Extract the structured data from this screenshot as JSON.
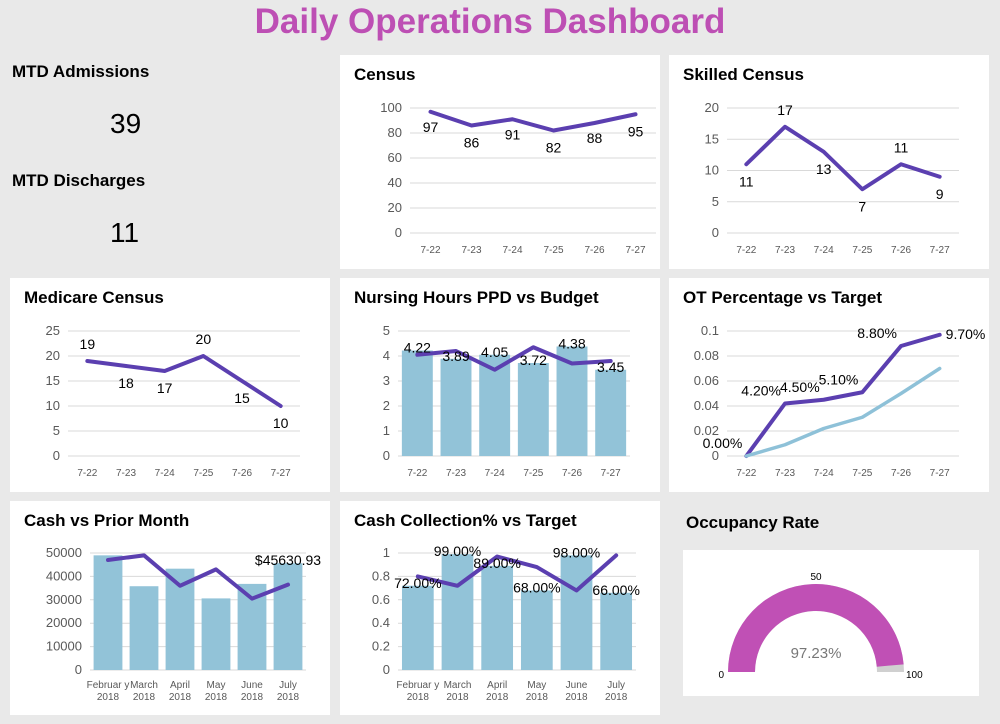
{
  "header": {
    "title": "Daily Operations Dashboard"
  },
  "kpis": {
    "admissions_label": "MTD Admissions",
    "admissions_value": "39",
    "discharges_label": "MTD Discharges",
    "discharges_value": "11"
  },
  "colors": {
    "line": "#5b3fb0",
    "bar": "#92c3d8",
    "target": "#8ec1d8",
    "gauge": "#c050b5",
    "gauge_bg": "#d0d0d0"
  },
  "gauge": {
    "title": "Occupancy Rate",
    "value_label": "97.23%",
    "value": 97.23,
    "min_label": "0",
    "mid_label": "50",
    "max_label": "100",
    "min": 0,
    "max": 100
  },
  "chart_data": [
    {
      "id": "census",
      "type": "line",
      "title": "Census",
      "categories": [
        "7-22",
        "7-23",
        "7-24",
        "7-25",
        "7-26",
        "7-27"
      ],
      "ylim": [
        0,
        100
      ],
      "yticks": [
        "0",
        "20",
        "40",
        "60",
        "80",
        "100"
      ],
      "series": [
        {
          "values": [
            97,
            86,
            91,
            82,
            88,
            95
          ],
          "labels": [
            "97",
            "86",
            "91",
            "82",
            "88",
            "95"
          ]
        }
      ]
    },
    {
      "id": "skilled",
      "type": "line",
      "title": "Skilled Census",
      "categories": [
        "7-22",
        "7-23",
        "7-24",
        "7-25",
        "7-26",
        "7-27"
      ],
      "ylim": [
        0,
        20
      ],
      "yticks": [
        "0",
        "5",
        "10",
        "15",
        "20"
      ],
      "series": [
        {
          "values": [
            11,
            17,
            13,
            7,
            11,
            9
          ],
          "labels": [
            "11",
            "17",
            "13",
            "7",
            "11",
            "9"
          ]
        }
      ]
    },
    {
      "id": "medicare",
      "type": "line",
      "title": "Medicare Census",
      "categories": [
        "7-22",
        "7-23",
        "7-24",
        "7-25",
        "7-26",
        "7-27"
      ],
      "ylim": [
        0,
        25
      ],
      "yticks": [
        "0",
        "5",
        "10",
        "15",
        "20",
        "25"
      ],
      "series": [
        {
          "values": [
            19,
            18,
            17,
            20,
            15,
            10
          ],
          "labels": [
            "19",
            "18",
            "17",
            "20",
            "15",
            "10"
          ]
        }
      ]
    },
    {
      "id": "nursing",
      "type": "bar+line",
      "title": "Nursing Hours PPD vs Budget",
      "categories": [
        "7-22",
        "7-23",
        "7-24",
        "7-25",
        "7-26",
        "7-27"
      ],
      "ylim": [
        0,
        5
      ],
      "yticks": [
        "0",
        "1",
        "2",
        "3",
        "4",
        "5"
      ],
      "bars": {
        "values": [
          4.22,
          3.89,
          4.05,
          3.72,
          4.38,
          3.45
        ],
        "labels": [
          "4.22",
          "3.89",
          "4.05",
          "3.72",
          "4.38",
          "3.45"
        ]
      },
      "series": [
        {
          "values": [
            4.05,
            4.2,
            3.45,
            4.35,
            3.7,
            3.8
          ]
        }
      ]
    },
    {
      "id": "ot",
      "type": "line",
      "title": "OT Percentage vs Target",
      "categories": [
        "7-22",
        "7-23",
        "7-24",
        "7-25",
        "7-26",
        "7-27"
      ],
      "ylim": [
        0,
        0.1
      ],
      "yticks": [
        "0",
        "0.02",
        "0.04",
        "0.06",
        "0.08",
        "0.1"
      ],
      "series": [
        {
          "values": [
            0,
            0.042,
            0.045,
            0.051,
            0.088,
            0.097
          ],
          "labels": [
            "0.00%",
            "4.20%",
            "4.50%",
            "5.10%",
            "8.80%",
            "9.70%"
          ]
        },
        {
          "values": [
            0,
            0.009,
            0.022,
            0.031,
            0.05,
            0.07
          ]
        }
      ]
    },
    {
      "id": "cash",
      "type": "bar+line",
      "title": "Cash vs Prior Month",
      "categories": [
        "Februar y 2018",
        "March 2018",
        "April 2018",
        "May 2018",
        "June 2018",
        "July 2018"
      ],
      "ylim": [
        0,
        50000
      ],
      "yticks": [
        "0",
        "10000",
        "20000",
        "30000",
        "40000",
        "50000"
      ],
      "bars": {
        "values": [
          49000,
          35800,
          43300,
          30600,
          36800,
          45630.93
        ],
        "labels": [
          "",
          "",
          "",
          "",
          "",
          "$45630.93"
        ]
      },
      "series": [
        {
          "values": [
            47000,
            49000,
            36000,
            43000,
            30500,
            36500
          ]
        }
      ]
    },
    {
      "id": "collection",
      "type": "bar+line",
      "title": "Cash Collection% vs Target",
      "categories": [
        "Februar y 2018",
        "March 2018",
        "April 2018",
        "May 2018",
        "June 2018",
        "July 2018"
      ],
      "ylim": [
        0,
        1
      ],
      "yticks": [
        "0",
        "0.2",
        "0.4",
        "0.6",
        "0.8",
        "1"
      ],
      "bars": {
        "values": [
          0.72,
          0.99,
          0.89,
          0.68,
          0.98,
          0.66
        ],
        "labels": [
          "72.00%",
          "99.00%",
          "89.00%",
          "68.00%",
          "98.00%",
          "66.00%"
        ]
      },
      "series": [
        {
          "values": [
            0.8,
            0.72,
            0.97,
            0.88,
            0.68,
            0.98
          ]
        }
      ]
    }
  ]
}
